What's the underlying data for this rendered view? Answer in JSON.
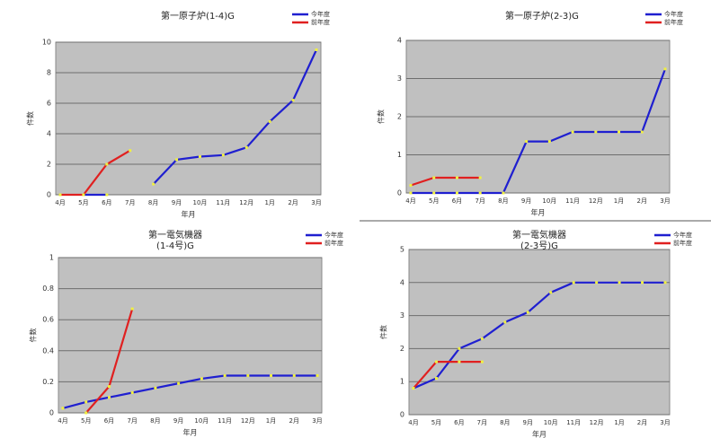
{
  "chart_data": [
    {
      "type": "line",
      "title": "第一原子炉(1-4)G",
      "x_label": "年月",
      "y_label": "件数",
      "categories": [
        "4月",
        "5月",
        "6月",
        "7月",
        "8月",
        "9月",
        "10月",
        "11月",
        "12月",
        "1月",
        "2月",
        "3月"
      ],
      "ylim": [
        0,
        10
      ],
      "yticks": [
        0,
        2,
        4,
        6,
        8,
        10
      ],
      "grid": true,
      "legend": "top-right",
      "series": [
        {
          "name": "今年度",
          "color": "#1f1fd0",
          "values": [
            null,
            0,
            0,
            null,
            0.7,
            2.3,
            2.5,
            2.6,
            3.1,
            4.8,
            6.2,
            9.5
          ]
        },
        {
          "name": "前年度",
          "color": "#e02020",
          "values": [
            0,
            0,
            2,
            2.9,
            null,
            null,
            null,
            null,
            null,
            null,
            null,
            null
          ]
        }
      ]
    },
    {
      "type": "line",
      "title": "第一原子炉(2-3)G",
      "x_label": "年月",
      "y_label": "件数",
      "categories": [
        "4月",
        "5月",
        "6月",
        "7月",
        "8月",
        "9月",
        "10月",
        "11月",
        "12月",
        "1月",
        "2月",
        "3月"
      ],
      "ylim": [
        0,
        4
      ],
      "yticks": [
        0,
        1,
        2,
        3,
        4
      ],
      "grid": true,
      "legend": "top-right",
      "series": [
        {
          "name": "今年度",
          "color": "#1f1fd0",
          "values": [
            0,
            0,
            0,
            0,
            0,
            1.35,
            1.35,
            1.6,
            1.6,
            1.6,
            1.6,
            3.25
          ]
        },
        {
          "name": "前年度",
          "color": "#e02020",
          "values": [
            0.2,
            0.4,
            0.4,
            0.4,
            null,
            null,
            null,
            null,
            null,
            null,
            null,
            null
          ]
        }
      ]
    },
    {
      "type": "line",
      "title": "第一電気機器",
      "subtitle": "(1-4号)G",
      "x_label": "年月",
      "y_label": "件数",
      "categories": [
        "4月",
        "5月",
        "6月",
        "7月",
        "8月",
        "9月",
        "10月",
        "11月",
        "12月",
        "1月",
        "2月",
        "3月"
      ],
      "ylim": [
        0,
        1
      ],
      "yticks": [
        0,
        {
          "value": 0.2,
          "label": "0.2"
        },
        {
          "value": 0.4,
          "label": "0.4"
        },
        {
          "value": 0.6,
          "label": "0.6"
        },
        {
          "value": 0.8,
          "label": "0.8"
        },
        1
      ],
      "grid": true,
      "legend": "top-right",
      "series": [
        {
          "name": "今年度",
          "color": "#1f1fd0",
          "values": [
            0.03,
            0.07,
            0.1,
            0.13,
            0.16,
            0.19,
            0.22,
            0.24,
            0.24,
            0.24,
            0.24,
            0.24
          ]
        },
        {
          "name": "前年度",
          "color": "#e02020",
          "values": [
            null,
            0,
            0.17,
            0.67,
            null,
            null,
            null,
            null,
            null,
            null,
            null,
            null
          ]
        }
      ]
    },
    {
      "type": "line",
      "title": "第一電気機器",
      "subtitle": "(2-3号)G",
      "x_label": "年月",
      "y_label": "件数",
      "categories": [
        "4月",
        "5月",
        "6月",
        "7月",
        "8月",
        "9月",
        "10月",
        "11月",
        "12月",
        "1月",
        "2月",
        "3月"
      ],
      "ylim": [
        0,
        5
      ],
      "yticks": [
        0,
        1,
        2,
        3,
        4,
        5
      ],
      "grid": true,
      "legend": "top-right",
      "series": [
        {
          "name": "今年度",
          "color": "#1f1fd0",
          "values": [
            0.8,
            1.1,
            2.0,
            2.3,
            2.8,
            3.1,
            3.7,
            4.0,
            4.0,
            4.0,
            4.0,
            4.0
          ]
        },
        {
          "name": "前年度",
          "color": "#e02020",
          "values": [
            0.8,
            1.6,
            1.6,
            1.6,
            null,
            null,
            null,
            null,
            null,
            null,
            null,
            null
          ]
        }
      ]
    }
  ]
}
